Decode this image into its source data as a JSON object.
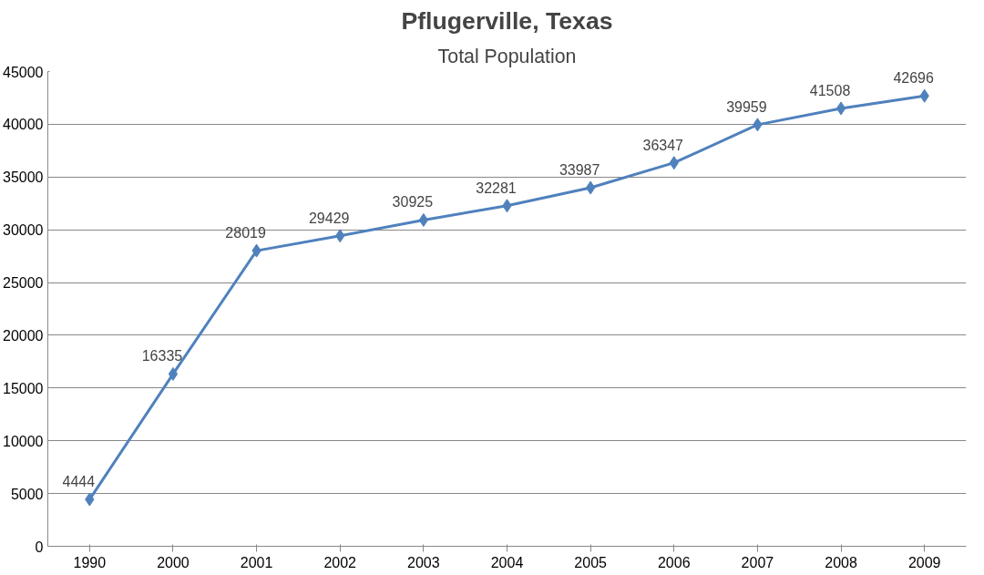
{
  "chart_data": {
    "type": "line",
    "title": "Pflugerville, Texas",
    "subtitle": "Total Population",
    "categories": [
      "1990",
      "2000",
      "2001",
      "2002",
      "2003",
      "2004",
      "2005",
      "2006",
      "2007",
      "2008",
      "2009"
    ],
    "series": [
      {
        "color": "#4f81bd",
        "values": [
          4444,
          16335,
          28019,
          29429,
          30925,
          32281,
          33987,
          36347,
          39959,
          41508,
          42696
        ]
      }
    ],
    "ylim": [
      0,
      45000
    ],
    "yticks": [
      0,
      5000,
      10000,
      15000,
      20000,
      25000,
      30000,
      35000,
      40000,
      45000
    ],
    "grid": "y",
    "marker": "diamond",
    "line_style": "solid",
    "data_labels": true
  }
}
